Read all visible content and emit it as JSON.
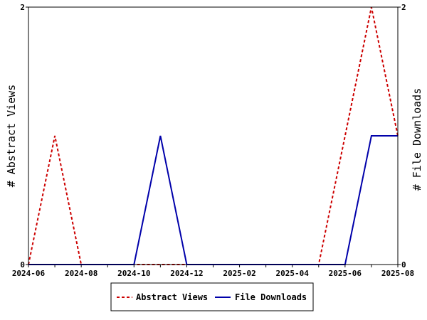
{
  "chart_data": {
    "type": "line",
    "x": [
      "2024-06",
      "2024-07",
      "2024-08",
      "2024-09",
      "2024-10",
      "2024-11",
      "2024-12",
      "2025-01",
      "2025-02",
      "2025-03",
      "2025-04",
      "2025-05",
      "2025-06",
      "2025-07",
      "2025-08"
    ],
    "x_tick_labels": [
      "2024-06",
      "2024-08",
      "2024-10",
      "2024-12",
      "2025-02",
      "2025-04",
      "2025-06",
      "2025-08"
    ],
    "series": [
      {
        "name": "Abstract Views",
        "values": [
          0,
          1,
          0,
          0,
          0,
          0,
          0,
          0,
          0,
          0,
          0,
          0,
          1,
          2,
          1
        ],
        "color": "#cc0000",
        "style": "dashed",
        "axis": "left"
      },
      {
        "name": "File Downloads",
        "values": [
          0,
          0,
          0,
          0,
          0,
          1,
          0,
          0,
          0,
          0,
          0,
          0,
          0,
          1,
          1
        ],
        "color": "#0000aa",
        "style": "solid",
        "axis": "right"
      }
    ],
    "ylabel": "# Abstract Views",
    "y2label": "# File Downloads",
    "ylim": [
      0,
      2
    ],
    "y2lim": [
      0,
      2
    ],
    "y_tick_labels": [
      "0",
      "2"
    ],
    "y2_tick_labels": [
      "0",
      "2"
    ],
    "grid": false,
    "legend_position": "bottom"
  }
}
